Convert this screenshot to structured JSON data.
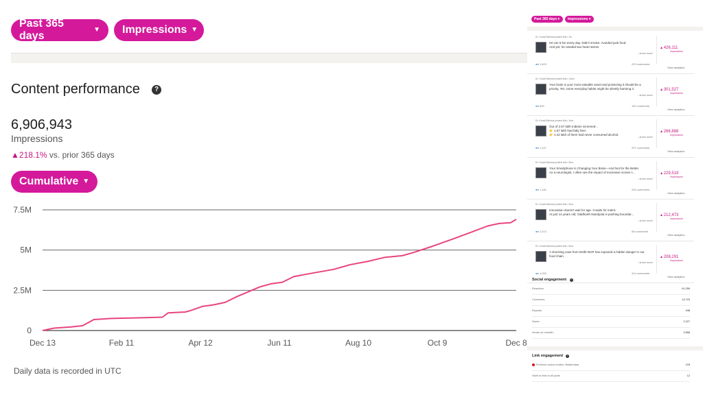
{
  "left": {
    "range_filter": "Past 365 days",
    "metric_filter": "Impressions",
    "title": "Content performance",
    "help_icon": "question-circle-icon",
    "total_value": "6,906,943",
    "total_label": "Impressions",
    "change_arrow": "▲",
    "change_value": "218.1%",
    "change_suffix": " vs. prior 365 days",
    "view_filter": "Cumulative",
    "footnote": "Daily data is recorded in UTC",
    "accent_color": "#d4199b",
    "line_color": "#e8437f"
  },
  "chart_data": {
    "type": "line",
    "x_tick_labels": [
      "Dec 13",
      "Feb 11",
      "Apr 12",
      "Jun 11",
      "Aug 10",
      "Oct 9",
      "Dec 8"
    ],
    "y_tick_labels": [
      "0",
      "2.5M",
      "5M",
      "7.5M"
    ],
    "ylim": [
      0,
      7500000
    ],
    "grid": true,
    "series": [
      {
        "points": [
          {
            "day": 0,
            "value": 0
          },
          {
            "day": 10,
            "value": 150000
          },
          {
            "day": 25,
            "value": 220000
          },
          {
            "day": 35,
            "value": 300000
          },
          {
            "day": 45,
            "value": 680000
          },
          {
            "day": 60,
            "value": 750000
          },
          {
            "day": 90,
            "value": 800000
          },
          {
            "day": 105,
            "value": 830000
          },
          {
            "day": 110,
            "value": 1100000
          },
          {
            "day": 125,
            "value": 1150000
          },
          {
            "day": 130,
            "value": 1250000
          },
          {
            "day": 140,
            "value": 1500000
          },
          {
            "day": 150,
            "value": 1600000
          },
          {
            "day": 160,
            "value": 1750000
          },
          {
            "day": 170,
            "value": 2100000
          },
          {
            "day": 180,
            "value": 2400000
          },
          {
            "day": 190,
            "value": 2700000
          },
          {
            "day": 200,
            "value": 2900000
          },
          {
            "day": 210,
            "value": 3000000
          },
          {
            "day": 220,
            "value": 3350000
          },
          {
            "day": 235,
            "value": 3550000
          },
          {
            "day": 255,
            "value": 3800000
          },
          {
            "day": 270,
            "value": 4100000
          },
          {
            "day": 285,
            "value": 4300000
          },
          {
            "day": 300,
            "value": 4550000
          },
          {
            "day": 315,
            "value": 4650000
          },
          {
            "day": 325,
            "value": 4850000
          },
          {
            "day": 340,
            "value": 5200000
          },
          {
            "day": 350,
            "value": 5450000
          },
          {
            "day": 360,
            "value": 5700000
          },
          {
            "day": 375,
            "value": 6100000
          },
          {
            "day": 390,
            "value": 6500000
          },
          {
            "day": 400,
            "value": 6650000
          },
          {
            "day": 410,
            "value": 6700000
          },
          {
            "day": 415,
            "value": 6906943
          }
        ]
      }
    ]
  },
  "right": {
    "range_filter": "Past 365 days",
    "metric_filter": "Impressions",
    "posts": [
      {
        "author": "Dr. Kunal Bahrani posted this • 2w",
        "line1": "He ran 5 km every day. Didn't smoke. Avoided junk food.",
        "line2": "And yet, he needed two heart stents.",
        "more": "...show more",
        "reactions": "1,823",
        "comments": "220 comments",
        "impressions": "426,111",
        "imp_label": "Impressions",
        "analytics": "View analytics"
      },
      {
        "author": "Dr. Kunal Bahrani posted this • 11mo",
        "line1": "Your brain is your most valuable asset and protecting it should be a",
        "line2": "priority. Yet, some everyday habits might be silently harming it.",
        "more": "...show more",
        "reactions": "819",
        "comments": "110 comments",
        "impressions": "301,527",
        "imp_label": "Impressions",
        "analytics": "View analytics"
      },
      {
        "author": "Dr. Kunal Bahrani posted this • 3mo",
        "line1": "Out of 2.57 lakh Indians screened...",
        "line2": "👉 1.57 lakh had fatty liver.",
        "line3": "👉 1.42 lakh of them had never consumed alcohol.",
        "more": "...show more",
        "reactions": "1,247",
        "comments": "207 comments",
        "impressions": "266,888",
        "imp_label": "Impressions",
        "analytics": "View analytics"
      },
      {
        "author": "Dr. Kunal Bahrani posted this • 8mo",
        "line1": "Your Smartphone Is Changing Your Brain—And Not for the Better.",
        "line2": "As a neurologist, I often see the impact of excessive screen t...",
        "more": "...show more",
        "reactions": "1,181",
        "comments": "245 comments",
        "impressions": "229,519",
        "imp_label": "Impressions",
        "analytics": "View analytics"
      },
      {
        "author": "Dr. Kunal Bahrani posted this • 5mo",
        "line1": "Innovation doesn't wait for age. It waits for intent.",
        "line2": "At just 14 years old, Siddharth Nandyala is pushing boundar...",
        "more": "...show more",
        "reactions": "1,074",
        "comments": "68 comments",
        "impressions": "212,473",
        "imp_label": "Impressions",
        "analytics": "View analytics"
      },
      {
        "author": "Dr. Kunal Bahrani posted this • 8mo",
        "line1": "A shocking case from Delhi-NCR has exposed a hidden danger in our",
        "line2": "food chain.",
        "more": "...show more",
        "reactions": "1,093",
        "comments": "414 comments",
        "impressions": "208,291",
        "imp_label": "Impressions",
        "analytics": "View analytics"
      }
    ],
    "social": {
      "title": "Social engagement",
      "rows": [
        {
          "label": "Reactions",
          "value": "61,259"
        },
        {
          "label": "Comments",
          "value": "14,723"
        },
        {
          "label": "Reposts",
          "value": "948"
        },
        {
          "label": "Saves",
          "value": "2,227"
        },
        {
          "label": "Sends on LinkedIn",
          "value": "3,566"
        }
      ]
    },
    "link": {
      "title": "Link engagement",
      "rows": [
        {
          "label": "Premium custom button: Masterclass",
          "value": "478"
        },
        {
          "label": "Visits to links in all posts",
          "value": "12"
        }
      ]
    }
  }
}
